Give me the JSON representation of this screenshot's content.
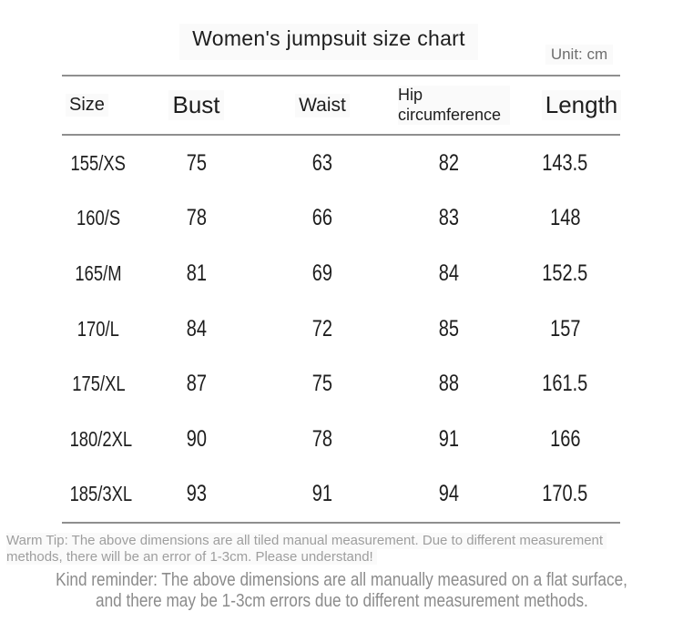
{
  "page": {
    "title": "Women's jumpsuit size chart",
    "unit_label": "Unit: cm"
  },
  "table": {
    "headers": [
      "Size",
      "Bust",
      "Waist",
      "Hip circumference",
      "Length"
    ],
    "rows": [
      {
        "size": "155/XS",
        "bust": "75",
        "waist": "63",
        "hip": "82",
        "length": "143.5"
      },
      {
        "size": "160/S",
        "bust": "78",
        "waist": "66",
        "hip": "83",
        "length": "148"
      },
      {
        "size": "165/M",
        "bust": "81",
        "waist": "69",
        "hip": "84",
        "length": "152.5"
      },
      {
        "size": "170/L",
        "bust": "84",
        "waist": "72",
        "hip": "85",
        "length": "157"
      },
      {
        "size": "175/XL",
        "bust": "87",
        "waist": "75",
        "hip": "88",
        "length": "161.5"
      },
      {
        "size": "180/2XL",
        "bust": "90",
        "waist": "78",
        "hip": "91",
        "length": "166"
      },
      {
        "size": "185/3XL",
        "bust": "93",
        "waist": "91",
        "hip": "94",
        "length": "170.5"
      }
    ]
  },
  "footer": {
    "warm_tip_line1": "Warm Tip: The above dimensions are all tiled manual measurement. Due to different measurement",
    "warm_tip_line2": "methods, there will be an error of 1-3cm. Please understand!",
    "kind_reminder_line1": "Kind reminder: The above dimensions are all manually measured on a flat surface,",
    "kind_reminder_line2": "and there may be 1-3cm errors due to different measurement methods."
  },
  "colors": {
    "text_dark": "#1d1d1d",
    "line_gray": "#8f8f8f",
    "unit_gray": "#6e6e6e",
    "tip_gray": "#9e9e9e",
    "reminder_gray": "#8b8b8b",
    "overlay_box": "#fafafa"
  }
}
